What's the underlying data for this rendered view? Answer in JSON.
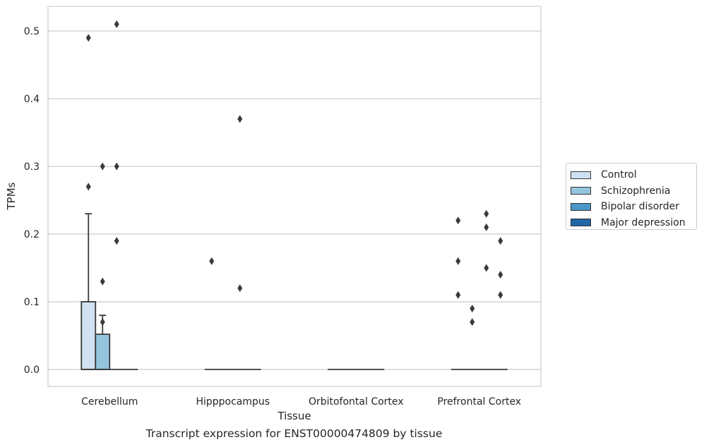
{
  "caption": "Transcript expression for ENST00000474809 by tissue",
  "chart_data": {
    "type": "box",
    "xlabel": "Tissue",
    "ylabel": "TPMs",
    "categories": [
      "Cerebellum",
      "Hipppocampus",
      "Orbitofontal Cortex",
      "Prefrontal Cortex"
    ],
    "ylim": [
      -0.025,
      0.537
    ],
    "yticks": [
      0.0,
      0.1,
      0.2,
      0.3,
      0.4,
      0.5
    ],
    "ytick_labels": [
      "0.0",
      "0.1",
      "0.2",
      "0.3",
      "0.4",
      "0.5"
    ],
    "grid": "horizontal",
    "legend_position": "right",
    "series": [
      {
        "name": "Control",
        "color": "#cfe1f2",
        "boxes": [
          {
            "q1": 0,
            "median": 0,
            "q3": 0.1,
            "whisker_low": 0,
            "whisker_high": 0.23,
            "outliers": [
              0.27,
              0.49
            ]
          },
          {
            "q1": 0,
            "median": 0,
            "q3": 0,
            "whisker_low": 0,
            "whisker_high": 0,
            "outliers": [
              0.16
            ]
          },
          {
            "q1": 0,
            "median": 0,
            "q3": 0,
            "whisker_low": 0,
            "whisker_high": 0,
            "outliers": []
          },
          {
            "q1": 0,
            "median": 0,
            "q3": 0,
            "whisker_low": 0,
            "whisker_high": 0,
            "outliers": [
              0.11,
              0.16,
              0.22
            ]
          }
        ]
      },
      {
        "name": "Schizophrenia",
        "color": "#93c4de",
        "boxes": [
          {
            "q1": 0,
            "median": 0,
            "q3": 0.052,
            "whisker_low": 0,
            "whisker_high": 0.08,
            "outliers": [
              0.07,
              0.13,
              0.3
            ]
          },
          {
            "q1": 0,
            "median": 0,
            "q3": 0,
            "whisker_low": 0,
            "whisker_high": 0,
            "outliers": []
          },
          {
            "q1": 0,
            "median": 0,
            "q3": 0,
            "whisker_low": 0,
            "whisker_high": 0,
            "outliers": []
          },
          {
            "q1": 0,
            "median": 0,
            "q3": 0,
            "whisker_low": 0,
            "whisker_high": 0,
            "outliers": [
              0.07,
              0.09
            ]
          }
        ]
      },
      {
        "name": "Bipolar disorder",
        "color": "#4a98c9",
        "boxes": [
          {
            "q1": 0,
            "median": 0,
            "q3": 0,
            "whisker_low": 0,
            "whisker_high": 0,
            "outliers": [
              0.19,
              0.3,
              0.51
            ]
          },
          {
            "q1": 0,
            "median": 0,
            "q3": 0,
            "whisker_low": 0,
            "whisker_high": 0,
            "outliers": [
              0.12,
              0.37
            ]
          },
          {
            "q1": 0,
            "median": 0,
            "q3": 0,
            "whisker_low": 0,
            "whisker_high": 0,
            "outliers": []
          },
          {
            "q1": 0,
            "median": 0,
            "q3": 0,
            "whisker_low": 0,
            "whisker_high": 0,
            "outliers": [
              0.15,
              0.21,
              0.23
            ]
          }
        ]
      },
      {
        "name": "Major depression",
        "color": "#2265a8",
        "boxes": [
          {
            "q1": 0,
            "median": 0,
            "q3": 0,
            "whisker_low": 0,
            "whisker_high": 0,
            "outliers": []
          },
          {
            "q1": 0,
            "median": 0,
            "q3": 0,
            "whisker_low": 0,
            "whisker_high": 0,
            "outliers": []
          },
          {
            "q1": 0,
            "median": 0,
            "q3": 0,
            "whisker_low": 0,
            "whisker_high": 0,
            "outliers": []
          },
          {
            "q1": 0,
            "median": 0,
            "q3": 0,
            "whisker_low": 0,
            "whisker_high": 0,
            "outliers": [
              0.11,
              0.14,
              0.19
            ]
          }
        ]
      }
    ]
  }
}
